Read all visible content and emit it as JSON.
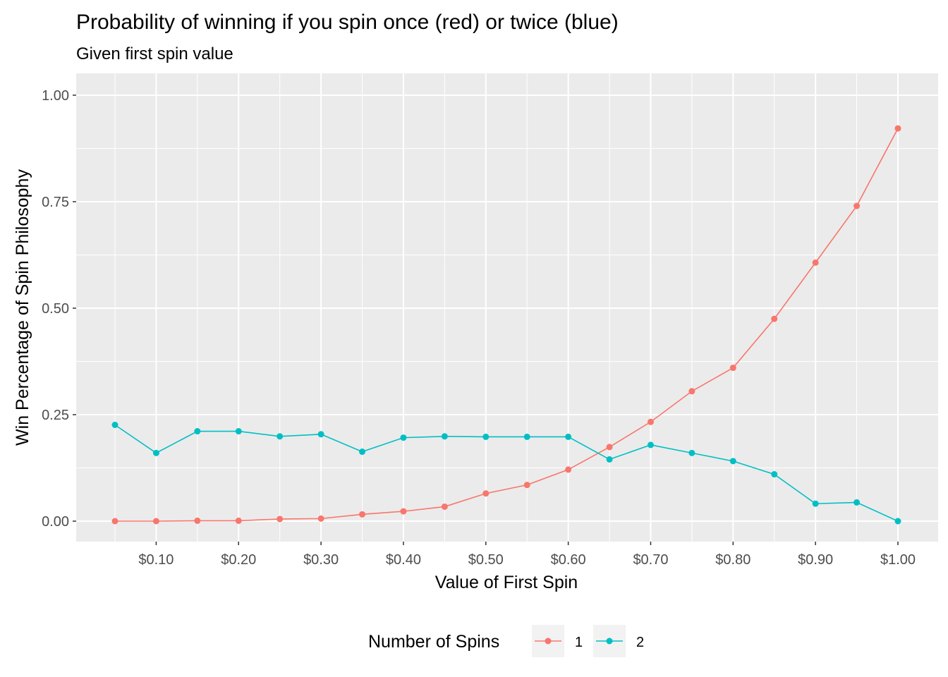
{
  "chart_data": {
    "type": "line",
    "title": "Probability of winning if you spin once (red) or twice (blue)",
    "subtitle": "Given first spin value",
    "xlabel": "Value of First Spin",
    "ylabel": "Win Percentage of Spin Philosophy",
    "x": [
      0.05,
      0.1,
      0.15,
      0.2,
      0.25,
      0.3,
      0.35,
      0.4,
      0.45,
      0.5,
      0.55,
      0.6,
      0.65,
      0.7,
      0.75,
      0.8,
      0.85,
      0.9,
      0.95,
      1.0
    ],
    "xlim": [
      0.05,
      1.0
    ],
    "ylim": [
      0,
      1
    ],
    "x_ticks": [
      0.1,
      0.2,
      0.3,
      0.4,
      0.5,
      0.6,
      0.7,
      0.8,
      0.9,
      1.0
    ],
    "x_tick_labels": [
      "$0.10",
      "$0.20",
      "$0.30",
      "$0.40",
      "$0.50",
      "$0.60",
      "$0.70",
      "$0.80",
      "$0.90",
      "$1.00"
    ],
    "y_ticks": [
      0,
      0.25,
      0.5,
      0.75,
      1.0
    ],
    "y_tick_labels": [
      "0.00",
      "0.25",
      "0.50",
      "0.75",
      "1.00"
    ],
    "grid": true,
    "legend": {
      "title": "Number of Spins",
      "position": "bottom"
    },
    "series": [
      {
        "name": "1",
        "color": "#F8766D",
        "values": [
          0.0,
          0.0,
          0.001,
          0.001,
          0.005,
          0.006,
          0.016,
          0.023,
          0.034,
          0.065,
          0.085,
          0.121,
          0.174,
          0.233,
          0.305,
          0.36,
          0.475,
          0.607,
          0.74,
          0.922
        ]
      },
      {
        "name": "2",
        "color": "#00BFC4",
        "values": [
          0.226,
          0.16,
          0.211,
          0.211,
          0.199,
          0.204,
          0.163,
          0.196,
          0.199,
          0.198,
          0.198,
          0.198,
          0.145,
          0.179,
          0.16,
          0.141,
          0.11,
          0.041,
          0.044,
          0.0
        ]
      }
    ]
  }
}
